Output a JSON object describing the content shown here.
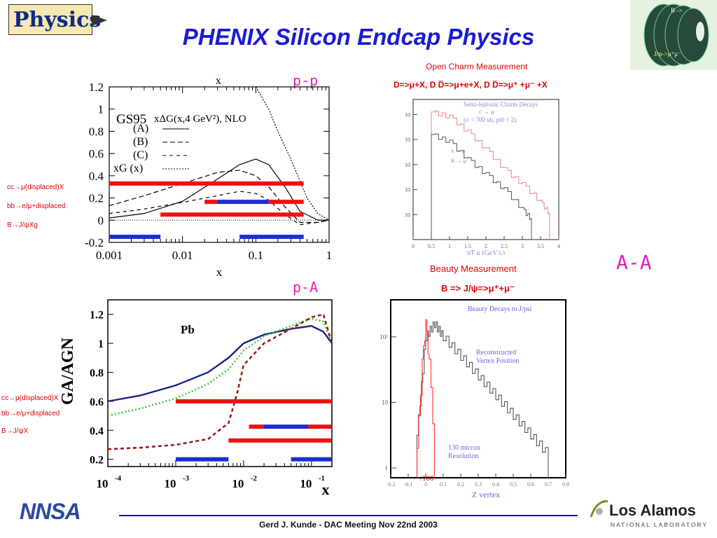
{
  "title": "PHENIX Silicon Endcap Physics",
  "logo_text": "Physics",
  "corner_image": {
    "labels": [
      "B ->",
      "J/ψ->μ⁺μ⁻"
    ]
  },
  "labels": {
    "pp": "p-p",
    "pa": "p-A",
    "aa": "A-A"
  },
  "open_charm": {
    "title": "Open Charm Measurement",
    "decays": "D=>μ+X,   D D̅=>μ+e+X, D D̅=>μ⁺ +μ⁻ +X"
  },
  "beauty": {
    "title": "Beauty Measurement",
    "decay": "B => J/ψ=>μ⁺+μ⁻"
  },
  "legend_left_top": [
    "cc→μ(displaced)X",
    "bb→e/μ+displaced",
    "B→J/ψXg"
  ],
  "legend_left_bottom": [
    "cc→μ(displaced)X",
    "bb→e/μ+displaced",
    "B→J/ψX"
  ],
  "footer": "Gerd J. Kunde   -  DAC Meeting Nov 22nd 2003",
  "lanl": {
    "name": "Los Alamos",
    "sub": "NATIONAL LABORATORY"
  },
  "nnsa": "NNSA",
  "colors": {
    "title": "#1a1ad6",
    "section": "#e020c0",
    "red": "#e00000",
    "blue": "#1a2ed6"
  },
  "chart_data": [
    {
      "type": "line",
      "title": "xΔG(x,4 GeV²), NLO",
      "annotation": "GS95",
      "xlabel": "x",
      "xscale": "log",
      "xlim": [
        0.001,
        1
      ],
      "ylim": [
        -0.2,
        1.2
      ],
      "yticks": [
        "-0.2",
        "0",
        "0.2",
        "0.4",
        "0.6",
        "0.8",
        "1",
        "1.2"
      ],
      "xticks": [
        "0.001",
        "0.01",
        "0.1",
        "1"
      ],
      "legend": [
        "(A)",
        "(B)",
        "(C)",
        "xG (x)"
      ],
      "series": [
        {
          "name": "(A)",
          "x": [
            0.001,
            0.003,
            0.01,
            0.03,
            0.06,
            0.1,
            0.15,
            0.25,
            0.4,
            0.7,
            1
          ],
          "y": [
            0.02,
            0.06,
            0.17,
            0.37,
            0.5,
            0.55,
            0.5,
            0.3,
            0.08,
            0.0,
            0.0
          ]
        },
        {
          "name": "(B)",
          "x": [
            0.001,
            0.003,
            0.01,
            0.03,
            0.06,
            0.1,
            0.15,
            0.25,
            0.4,
            0.7,
            1
          ],
          "y": [
            0.13,
            0.22,
            0.33,
            0.43,
            0.45,
            0.4,
            0.3,
            0.12,
            -0.02,
            -0.02,
            0.0
          ]
        },
        {
          "name": "(C)",
          "x": [
            0.001,
            0.003,
            0.01,
            0.03,
            0.06,
            0.1,
            0.15,
            0.25,
            0.4,
            0.7,
            1
          ],
          "y": [
            0.06,
            0.1,
            0.16,
            0.22,
            0.26,
            0.24,
            0.18,
            0.05,
            -0.04,
            -0.02,
            0.0
          ]
        },
        {
          "name": "xG (x)",
          "x": [
            0.1,
            0.15,
            0.2,
            0.3,
            0.5,
            0.7,
            1
          ],
          "y": [
            1.2,
            1.0,
            0.8,
            0.55,
            0.2,
            0.06,
            0.0
          ]
        }
      ],
      "coverage_bars": [
        {
          "color": "red",
          "x": [
            0.001,
            0.45
          ]
        },
        {
          "color": "red",
          "x": [
            0.02,
            0.03
          ]
        },
        {
          "color": "blue",
          "x": [
            0.03,
            0.15
          ]
        },
        {
          "color": "red",
          "x": [
            0.15,
            0.45
          ]
        },
        {
          "color": "red",
          "x": [
            0.005,
            0.45
          ]
        },
        {
          "color": "blue",
          "x": [
            0.001,
            0.005
          ]
        },
        {
          "color": "blue",
          "x": [
            0.06,
            0.45
          ]
        }
      ]
    },
    {
      "type": "line",
      "xlabel": "x",
      "ylabel": "GA/AGN",
      "xscale": "log",
      "xlim": [
        0.0001,
        0.2
      ],
      "ylim": [
        0.15,
        1.3
      ],
      "annotation": "Pb",
      "yticks": [
        "0.2",
        "0.4",
        "0.6",
        "0.8",
        "1",
        "1.2"
      ],
      "xticks": [
        "10-4",
        "10-3",
        "10-2",
        "10-1"
      ],
      "series": [
        {
          "color": "blue",
          "x": [
            0.0001,
            0.0003,
            0.001,
            0.003,
            0.006,
            0.01,
            0.02,
            0.05,
            0.1,
            0.15,
            0.2
          ],
          "y": [
            0.6,
            0.64,
            0.71,
            0.8,
            0.9,
            1.0,
            1.06,
            1.1,
            1.12,
            1.08,
            1.0
          ]
        },
        {
          "color": "green",
          "x": [
            0.0001,
            0.0003,
            0.001,
            0.003,
            0.006,
            0.01,
            0.02,
            0.05,
            0.1,
            0.15,
            0.2
          ],
          "y": [
            0.5,
            0.55,
            0.62,
            0.72,
            0.82,
            0.95,
            1.05,
            1.12,
            1.17,
            1.15,
            1.0
          ]
        },
        {
          "color": "darkred",
          "x": [
            0.0001,
            0.0003,
            0.001,
            0.003,
            0.006,
            0.008,
            0.01,
            0.02,
            0.05,
            0.1,
            0.15,
            0.2
          ],
          "y": [
            0.27,
            0.28,
            0.3,
            0.34,
            0.45,
            0.65,
            0.85,
            1.0,
            1.1,
            1.18,
            1.2,
            1.0
          ]
        }
      ],
      "coverage_bars": [
        {
          "color": "red",
          "x": [
            0.001,
            0.2
          ]
        },
        {
          "color": "red",
          "x": [
            0.012,
            0.02
          ]
        },
        {
          "color": "blue",
          "x": [
            0.02,
            0.09
          ]
        },
        {
          "color": "red",
          "x": [
            0.09,
            0.2
          ]
        },
        {
          "color": "red",
          "x": [
            0.006,
            0.2
          ]
        },
        {
          "color": "blue",
          "x": [
            0.001,
            0.006
          ]
        },
        {
          "color": "blue",
          "x": [
            0.05,
            0.2
          ]
        }
      ]
    },
    {
      "type": "line",
      "title": "Semi-leptonic Charm Decays",
      "subtitle": "c → μ",
      "annotation": "(σ = 700 ub, pt0 = 2)",
      "legend": [
        "π → μ",
        "K → μ"
      ],
      "xlabel": "pT μ (GeV/c)",
      "xlim": [
        0,
        4
      ],
      "xticks": [
        "0",
        "0.5",
        "1",
        "1.5",
        "2",
        "2.5",
        "3",
        "3.5",
        "4"
      ],
      "yticks": [
        "10",
        "10",
        "10",
        "10",
        "10"
      ],
      "series": [
        {
          "color": "#f08080",
          "x": [
            0.5,
            1.0,
            1.5,
            2.0,
            2.5,
            3.0,
            3.5,
            3.75
          ],
          "y": [
            5.1,
            4.9,
            4.3,
            3.6,
            2.8,
            2.2,
            1.5,
            1.0
          ]
        },
        {
          "color": "#555555",
          "x": [
            0.5,
            1.0,
            1.5,
            2.0,
            2.5,
            3.0,
            3.25
          ],
          "y": [
            4.2,
            3.9,
            3.2,
            2.6,
            2.0,
            1.2,
            0.8
          ]
        }
      ]
    },
    {
      "type": "line",
      "title": "Beauty Decays to J/psi",
      "xlabel": "Z vertex",
      "annotations": [
        "Reconstructed",
        "Vertex Position",
        "130 micron",
        "Resolution",
        "/100"
      ],
      "xlim": [
        -0.2,
        0.8
      ],
      "xticks": [
        "-0.2",
        "-0.1",
        "0",
        "0.1",
        "0.2",
        "0.3",
        "0.4",
        "0.5",
        "0.6",
        "0.7",
        "0.8"
      ],
      "yticks": [
        "1",
        "10",
        "10²"
      ],
      "series": [
        {
          "name": "Reconstructed",
          "color": "#555555",
          "x": [
            -0.05,
            0,
            0.05,
            0.1,
            0.2,
            0.3,
            0.4,
            0.5,
            0.6,
            0.7
          ],
          "y": [
            0.5,
            2.0,
            2.2,
            2.0,
            1.7,
            1.4,
            1.1,
            0.8,
            0.5,
            0.2
          ]
        },
        {
          "name": "Resolution",
          "color": "#ff3030",
          "x": [
            -0.05,
            -0.02,
            0,
            0.02,
            0.05
          ],
          "y": [
            0.3,
            1.6,
            2.2,
            1.6,
            0.3
          ]
        }
      ]
    }
  ]
}
